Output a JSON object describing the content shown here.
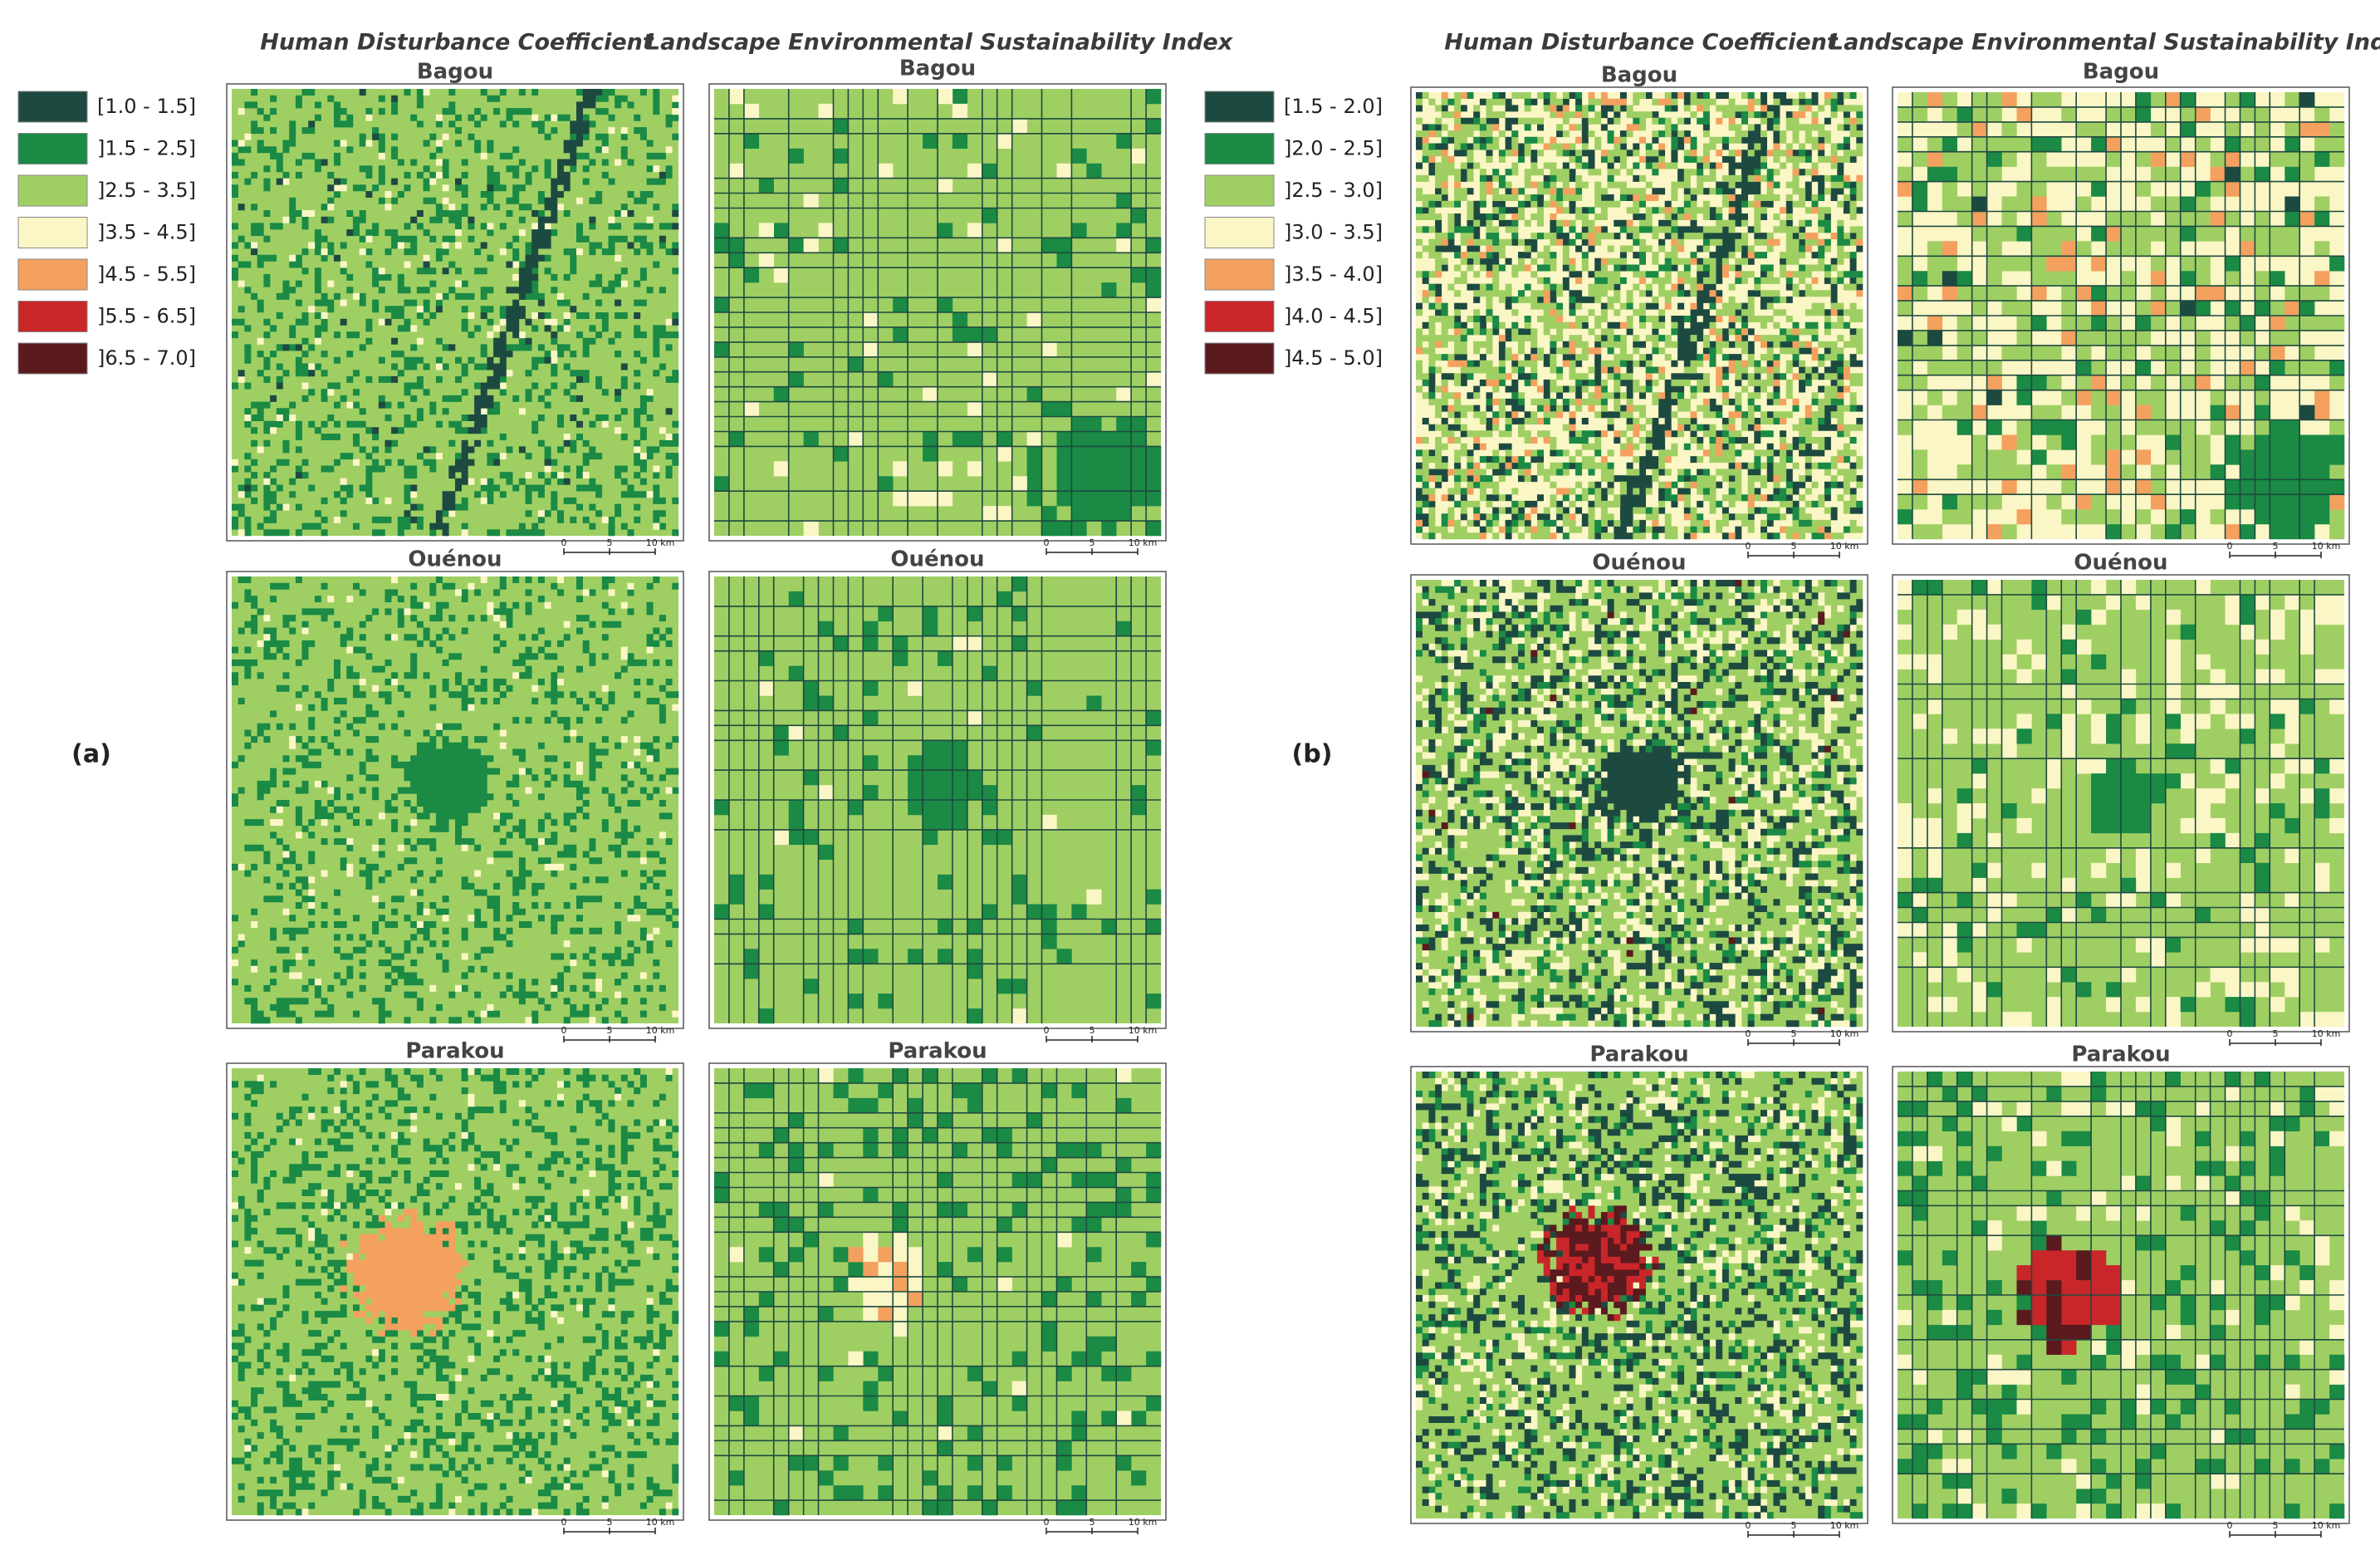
{
  "figure": {
    "panels": [
      {
        "label": "(a)",
        "column_titles": [
          "Human Disturbance Coefficient",
          "Landscape Environmental Sustainability Index"
        ],
        "legend": [
          {
            "label": "[1.0 - 1.5]",
            "color": "#1d4a40"
          },
          {
            "label": "]1.5 - 2.5]",
            "color": "#1a8a45"
          },
          {
            "label": "]2.5 - 3.5]",
            "color": "#9fcf63"
          },
          {
            "label": "]3.5 - 4.5]",
            "color": "#fbf6c5"
          },
          {
            "label": "]4.5 - 5.5]",
            "color": "#f4a05e"
          },
          {
            "label": "]5.5 - 6.5]",
            "color": "#c9262a"
          },
          {
            "label": "]6.5 - 7.0]",
            "color": "#5a1a1e"
          }
        ],
        "sites": [
          "Bagou",
          "Ouénou",
          "Parakou"
        ]
      },
      {
        "label": "(b)",
        "column_titles": [
          "Human Disturbance Coefficient",
          "Landscape Environmental Sustainability Index"
        ],
        "legend": [
          {
            "label": "[1.5 - 2.0]",
            "color": "#1d4a40"
          },
          {
            "label": "]2.0 - 2.5]",
            "color": "#1a8a45"
          },
          {
            "label": "]2.5 - 3.0]",
            "color": "#9fcf63"
          },
          {
            "label": "]3.0 - 3.5]",
            "color": "#fbf6c5"
          },
          {
            "label": "]3.5 - 4.0]",
            "color": "#f4a05e"
          },
          {
            "label": "]4.0 - 4.5]",
            "color": "#c9262a"
          },
          {
            "label": "]4.5 - 5.0]",
            "color": "#5a1a1e"
          }
        ],
        "sites": [
          "Bagou",
          "Ouénou",
          "Parakou"
        ]
      }
    ],
    "scale_bar": [
      "0",
      "5",
      "10 km"
    ]
  }
}
